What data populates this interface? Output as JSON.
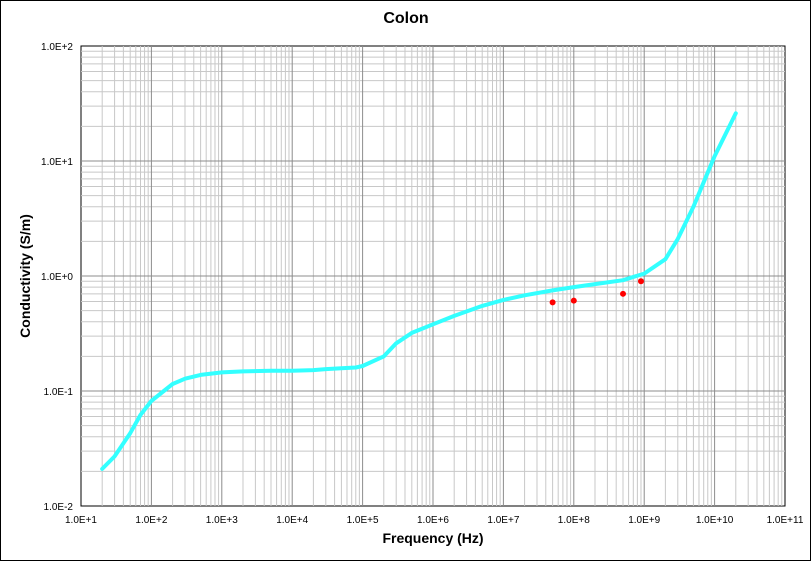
{
  "chart_data": {
    "type": "line",
    "title": "Colon",
    "xlabel": "Frequency (Hz)",
    "ylabel": "Conductivity (S/m)",
    "x_scale": "log",
    "y_scale": "log",
    "xlim": [
      10,
      100000000000
    ],
    "ylim": [
      0.01,
      100
    ],
    "grid": true,
    "legend": "none",
    "x_ticks": [
      "1.0E+1",
      "1.0E+2",
      "1.0E+3",
      "1.0E+4",
      "1.0E+5",
      "1.0E+6",
      "1.0E+7",
      "1.0E+8",
      "1.0E+9",
      "1.0E+10",
      "1.0E+11"
    ],
    "y_ticks": [
      "1.0E+2",
      "1.0E+1",
      "1.0E+0",
      "1.0E-1",
      "1.0E-2"
    ],
    "series": [
      {
        "color": "#33FFFF",
        "x": [
          20,
          30,
          50,
          70,
          100,
          150,
          200,
          300,
          500,
          1000,
          2000,
          5000,
          10000,
          20000,
          30000,
          50000,
          80000,
          100000,
          200000,
          300000,
          500000,
          1000000,
          2000000,
          5000000,
          10000000,
          20000000,
          50000000,
          100000000,
          200000000,
          500000000,
          1000000000,
          2000000000,
          3000000000,
          5000000000,
          10000000000,
          20000000000
        ],
        "y": [
          0.021,
          0.027,
          0.043,
          0.062,
          0.082,
          0.1,
          0.115,
          0.128,
          0.138,
          0.145,
          0.148,
          0.15,
          0.15,
          0.152,
          0.155,
          0.158,
          0.16,
          0.165,
          0.2,
          0.26,
          0.32,
          0.38,
          0.45,
          0.55,
          0.62,
          0.68,
          0.75,
          0.8,
          0.85,
          0.92,
          1.05,
          1.4,
          2.1,
          4.0,
          11.0,
          26.0
        ]
      },
      {
        "color": "#FF0000",
        "marker": "dot",
        "x": [
          50000000,
          100000000,
          500000000,
          900000000
        ],
        "y": [
          0.59,
          0.61,
          0.7,
          0.9
        ]
      }
    ]
  }
}
